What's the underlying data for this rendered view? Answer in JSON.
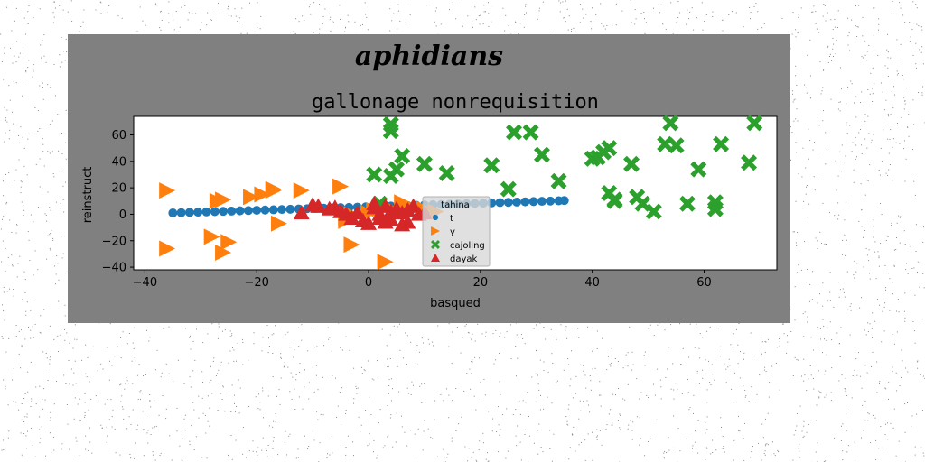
{
  "figure": {
    "suptitle": "aphidians",
    "panel_color": "#808080",
    "plot_bg": "#ffffff"
  },
  "chart_data": {
    "type": "scatter",
    "title": "gallonage nonrequisition",
    "xlabel": "basqued",
    "ylabel": "reinstruct",
    "xlim": [
      -42,
      73
    ],
    "ylim": [
      -42,
      74
    ],
    "xticks": [
      -40,
      -20,
      0,
      20,
      40,
      60
    ],
    "yticks": [
      -40,
      -20,
      0,
      20,
      40,
      60
    ],
    "grid": false,
    "legend": {
      "title": "tahina",
      "placement": "center",
      "entries": [
        "t",
        "y",
        "cajoling",
        "dayak"
      ]
    },
    "series": [
      {
        "name": "t",
        "marker": "circle",
        "color": "#1f77b4",
        "x": [
          -35,
          -33.5,
          -32,
          -30.5,
          -29,
          -27.5,
          -26,
          -24.5,
          -23,
          -21.5,
          -20,
          -18.5,
          -17,
          -15.5,
          -14,
          -12.5,
          -11,
          -9.5,
          -8,
          -6.5,
          -5,
          -3.5,
          -2,
          -0.5,
          1,
          2.5,
          4,
          5.5,
          7,
          8.5,
          10,
          11.5,
          13,
          14.5,
          16,
          17.5,
          19,
          20.5,
          22,
          23.5,
          25,
          26.5,
          28,
          29.5,
          31,
          32.5,
          34,
          35
        ],
        "y": [
          1,
          1.2,
          1.4,
          1.6,
          1.8,
          2,
          2.2,
          2.4,
          2.6,
          2.8,
          3,
          3.2,
          3.4,
          3.6,
          3.8,
          4,
          4.2,
          4.4,
          4.6,
          4.8,
          5,
          5.2,
          5.4,
          5.6,
          5.8,
          6,
          6.2,
          6.4,
          6.6,
          6.8,
          7,
          7.2,
          7.4,
          7.6,
          7.8,
          8,
          8.2,
          8.4,
          8.6,
          8.8,
          9,
          9.2,
          9.4,
          9.6,
          9.8,
          10,
          10.2,
          10.4
        ]
      },
      {
        "name": "y",
        "marker": "triangle-right",
        "color": "#ff7f0e",
        "x": [
          -36,
          -36,
          -27,
          -28,
          -25,
          -26,
          -26,
          -21,
          -19,
          -17,
          -17,
          -16,
          -12,
          -5,
          -3,
          -4,
          -4,
          -3,
          3,
          6,
          0,
          1,
          2,
          5,
          7,
          10,
          12
        ],
        "y": [
          18,
          -26,
          10,
          -17,
          -21,
          -29,
          11,
          13,
          15,
          18,
          19,
          -7,
          18,
          21,
          -23,
          -5,
          -2,
          0,
          -36,
          9,
          1,
          3,
          4,
          2,
          7,
          4,
          2
        ]
      },
      {
        "name": "cajoling",
        "marker": "x",
        "color": "#2ca02c",
        "x": [
          1,
          4,
          4,
          5,
          4,
          6,
          10,
          14,
          22,
          26,
          25,
          29,
          31,
          34,
          40,
          41,
          42,
          43,
          43,
          44,
          44,
          47,
          48,
          49,
          51,
          53,
          54,
          55,
          57,
          59,
          62,
          62,
          63,
          68,
          69,
          2
        ],
        "y": [
          30,
          63,
          68,
          34,
          29,
          44,
          38,
          31,
          37,
          62,
          19,
          62,
          45,
          25,
          42,
          43,
          47,
          50,
          16,
          11,
          10,
          38,
          13,
          8,
          2,
          53,
          69,
          52,
          8,
          34,
          4,
          9,
          53,
          39,
          69,
          8
        ]
      },
      {
        "name": "dayak",
        "marker": "triangle",
        "color": "#d62728",
        "x": [
          -12,
          -10,
          -9,
          -7,
          -5,
          -4,
          -3,
          -2,
          -1,
          0,
          1,
          1,
          2,
          2,
          3,
          3,
          4,
          4,
          5,
          6,
          6,
          7,
          7,
          8,
          9,
          10,
          -6
        ],
        "y": [
          1,
          7,
          6,
          4,
          2,
          0,
          -3,
          1,
          -5,
          -7,
          5,
          8,
          -3,
          0,
          6,
          -6,
          2,
          -4,
          4,
          1,
          -8,
          3,
          -6,
          6,
          0,
          1,
          5
        ]
      }
    ]
  }
}
